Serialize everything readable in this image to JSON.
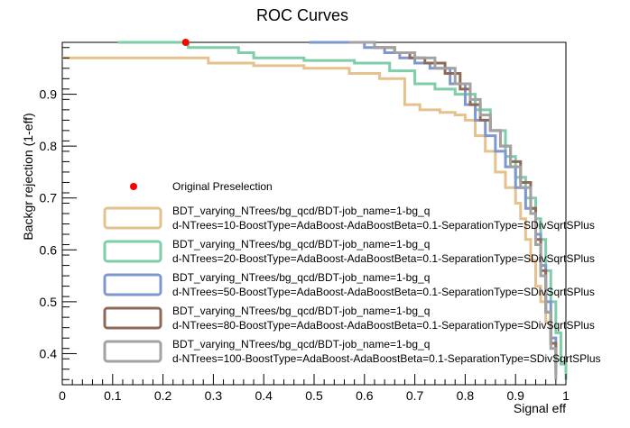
{
  "chart_data": {
    "type": "line",
    "title": "ROC Curves",
    "xlabel": "Signal eff",
    "ylabel": "Backgr rejection (1-eff)",
    "xlim": [
      0,
      1
    ],
    "ylim": [
      0.34,
      1.0
    ],
    "x_ticks": [
      "0",
      "0.1",
      "0.2",
      "0.3",
      "0.4",
      "0.5",
      "0.6",
      "0.7",
      "0.8",
      "0.9",
      "1"
    ],
    "y_ticks": [
      "0.4",
      "0.5",
      "0.6",
      "0.7",
      "0.8",
      "0.9"
    ],
    "y_tick_values": [
      0.4,
      0.5,
      0.6,
      0.7,
      0.8,
      0.9
    ],
    "marker": {
      "name": "Original Preselection",
      "x": 0.245,
      "y": 1.0,
      "color": "#ff0000"
    },
    "series": [
      {
        "name": "BDT_varying_NTrees/bg_qcd/BDT-job_name=1-bg_q\nd-NTrees=10-BoostType=AdaBoost-AdaBoostBeta=0.1-SeparationType=SDivSqrtSPlus",
        "color": "#e5c18d",
        "x": [
          0,
          0.29,
          0.38,
          0.48,
          0.57,
          0.63,
          0.68,
          0.71,
          0.75,
          0.78,
          0.8,
          0.82,
          0.84,
          0.86,
          0.88,
          0.9,
          0.91,
          0.92,
          0.93,
          0.94,
          0.95,
          0.96,
          0.97,
          0.98
        ],
        "y": [
          0.97,
          0.96,
          0.955,
          0.95,
          0.94,
          0.93,
          0.88,
          0.87,
          0.865,
          0.86,
          0.85,
          0.82,
          0.79,
          0.75,
          0.72,
          0.69,
          0.66,
          0.62,
          0.58,
          0.53,
          0.5,
          0.46,
          0.42,
          0.39
        ]
      },
      {
        "name": "BDT_varying_NTrees/bg_qcd/BDT-job_name=1-bg_q\nd-NTrees=20-BoostType=AdaBoost-AdaBoostBeta=0.1-SeparationType=SDivSqrtSPlus",
        "color": "#7fcea9",
        "x": [
          0.11,
          0.25,
          0.35,
          0.38,
          0.48,
          0.58,
          0.65,
          0.7,
          0.74,
          0.78,
          0.82,
          0.85,
          0.88,
          0.9,
          0.92,
          0.94,
          0.95,
          0.96,
          0.97,
          0.98,
          0.99,
          1.0
        ],
        "y": [
          1.0,
          0.99,
          0.98,
          0.97,
          0.965,
          0.96,
          0.945,
          0.92,
          0.91,
          0.9,
          0.87,
          0.83,
          0.78,
          0.74,
          0.7,
          0.66,
          0.62,
          0.56,
          0.5,
          0.44,
          0.38,
          0.35
        ]
      },
      {
        "name": "BDT_varying_NTrees/bg_qcd/BDT-job_name=1-bg_q\nd-NTrees=50-BoostType=AdaBoost-AdaBoostBeta=0.1-SeparationType=SDivSqrtSPlus",
        "color": "#7f97cf",
        "x": [
          0.49,
          0.6,
          0.64,
          0.67,
          0.7,
          0.73,
          0.77,
          0.8,
          0.82,
          0.84,
          0.86,
          0.88,
          0.9,
          0.92,
          0.94,
          0.95,
          0.96,
          0.97,
          0.98
        ],
        "y": [
          1.0,
          0.99,
          0.98,
          0.97,
          0.96,
          0.95,
          0.92,
          0.88,
          0.85,
          0.82,
          0.79,
          0.76,
          0.72,
          0.68,
          0.63,
          0.57,
          0.5,
          0.43,
          0.37
        ]
      },
      {
        "name": "BDT_varying_NTrees/bg_qcd/BDT-job_name=1-bg_q\nd-NTrees=80-BoostType=AdaBoost-AdaBoostBeta=0.1-SeparationType=SDivSqrtSPlus",
        "color": "#8e6a58",
        "x": [
          0.57,
          0.62,
          0.66,
          0.69,
          0.72,
          0.76,
          0.79,
          0.81,
          0.83,
          0.85,
          0.87,
          0.89,
          0.91,
          0.93,
          0.94,
          0.95,
          0.96,
          0.97,
          0.98
        ],
        "y": [
          1.0,
          0.99,
          0.98,
          0.97,
          0.96,
          0.94,
          0.91,
          0.88,
          0.85,
          0.83,
          0.8,
          0.77,
          0.73,
          0.68,
          0.62,
          0.56,
          0.48,
          0.42,
          0.36
        ]
      },
      {
        "name": "BDT_varying_NTrees/bg_qcd/BDT-job_name=1-bg_q\nd-NTrees=100-BoostType=AdaBoost-AdaBoostBeta=0.1-SeparationType=SDivSqrtSPlus",
        "color": "#a2a2a2",
        "x": [
          0.57,
          0.62,
          0.66,
          0.7,
          0.74,
          0.78,
          0.81,
          0.83,
          0.85,
          0.87,
          0.89,
          0.91,
          0.93,
          0.94,
          0.95,
          0.96,
          0.97,
          0.98
        ],
        "y": [
          1.0,
          0.99,
          0.98,
          0.97,
          0.95,
          0.92,
          0.89,
          0.86,
          0.83,
          0.8,
          0.76,
          0.72,
          0.67,
          0.61,
          0.55,
          0.48,
          0.41,
          0.35
        ]
      }
    ],
    "legend": {
      "marker_label": "Original Preselection",
      "entries": [
        {
          "line1": "BDT_varying_NTrees/bg_qcd/BDT-job_name=1-bg_q",
          "line2": "d-NTrees=10-BoostType=AdaBoost-AdaBoostBeta=0.1-SeparationType=SDivSqrtSPlus",
          "color": "#e5c18d"
        },
        {
          "line1": "BDT_varying_NTrees/bg_qcd/BDT-job_name=1-bg_q",
          "line2": "d-NTrees=20-BoostType=AdaBoost-AdaBoostBeta=0.1-SeparationType=SDivSqrtSPlus",
          "color": "#7fcea9"
        },
        {
          "line1": "BDT_varying_NTrees/bg_qcd/BDT-job_name=1-bg_q",
          "line2": "d-NTrees=50-BoostType=AdaBoost-AdaBoostBeta=0.1-SeparationType=SDivSqrtSPlus",
          "color": "#7f97cf"
        },
        {
          "line1": "BDT_varying_NTrees/bg_qcd/BDT-job_name=1-bg_q",
          "line2": "d-NTrees=80-BoostType=AdaBoost-AdaBoostBeta=0.1-SeparationType=SDivSqrtSPlus",
          "color": "#8e6a58"
        },
        {
          "line1": "BDT_varying_NTrees/bg_qcd/BDT-job_name=1-bg_q",
          "line2": "d-NTrees=100-BoostType=AdaBoost-AdaBoostBeta=0.1-SeparationType=SDivSqrtSPlus",
          "color": "#a2a2a2"
        }
      ]
    },
    "grid": false,
    "legend_position": "bottom-left"
  }
}
